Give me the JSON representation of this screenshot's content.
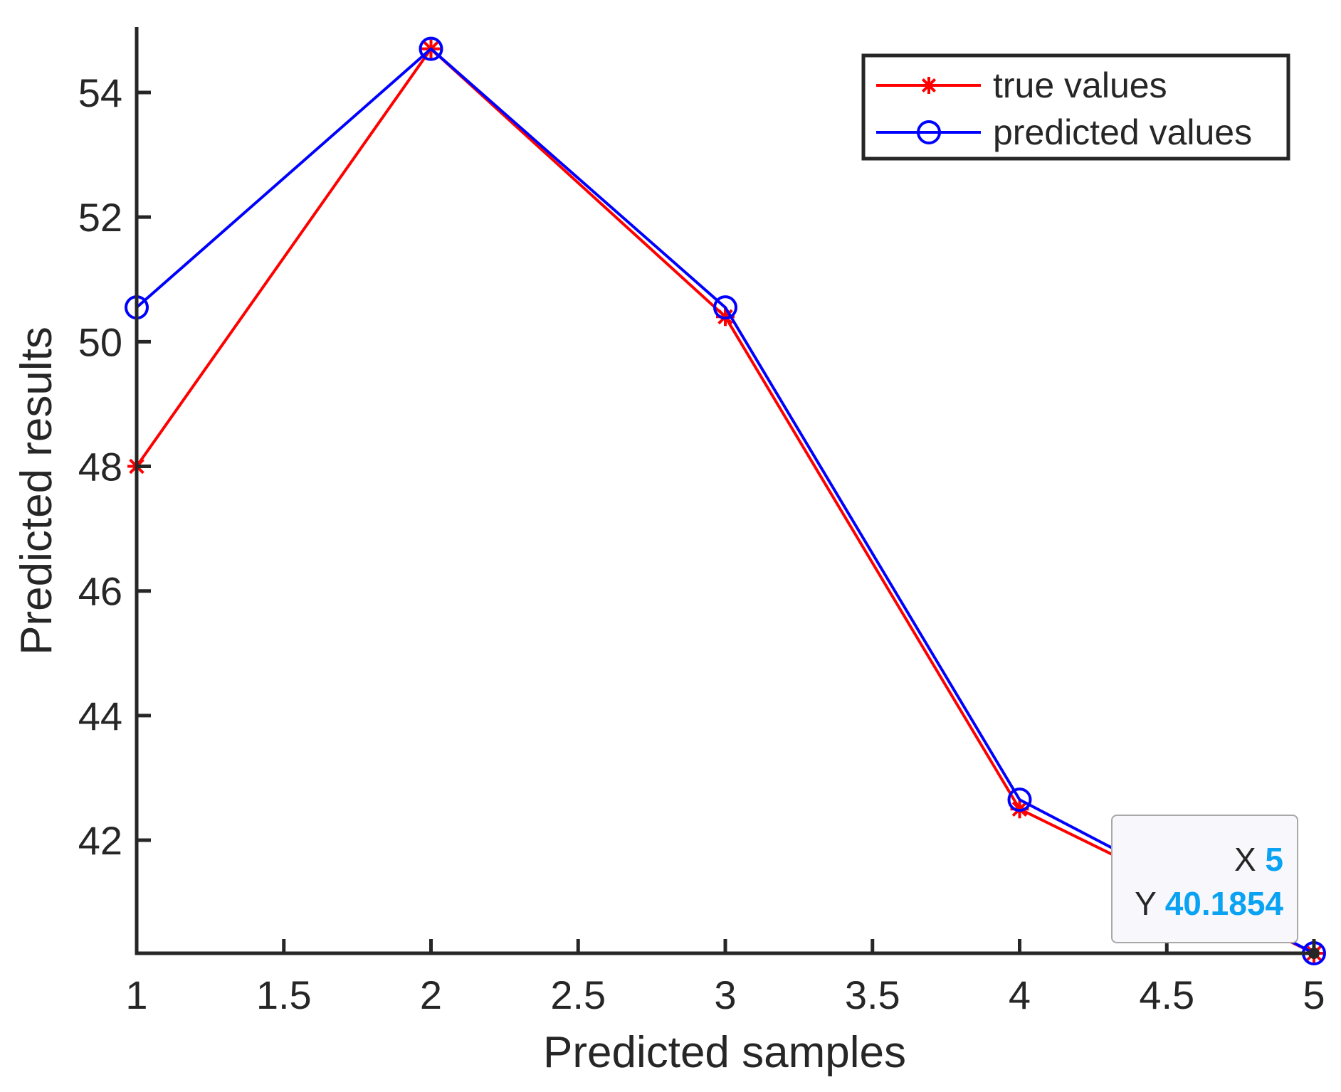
{
  "chart_data": {
    "type": "line",
    "title": "",
    "xlabel": "Predicted samples",
    "ylabel": "Predicted results",
    "xlim": [
      1,
      5
    ],
    "ylim": [
      40.1854,
      55.05
    ],
    "x_ticks": [
      1,
      1.5,
      2,
      2.5,
      3,
      3.5,
      4,
      4.5,
      5
    ],
    "x_tick_labels": [
      "1",
      "1.5",
      "2",
      "2.5",
      "3",
      "3.5",
      "4",
      "4.5",
      "5"
    ],
    "y_ticks": [
      42,
      44,
      46,
      48,
      50,
      52,
      54
    ],
    "y_tick_labels": [
      "42",
      "44",
      "46",
      "48",
      "50",
      "52",
      "54"
    ],
    "grid": false,
    "legend_position": "top-right",
    "series": [
      {
        "name": "true values",
        "color": "#ff0000",
        "marker": "asterisk",
        "x": [
          1,
          2,
          3,
          4,
          5
        ],
        "values": [
          48.0,
          54.7,
          50.4,
          42.5,
          40.1854
        ]
      },
      {
        "name": "predicted values",
        "color": "#0000ff",
        "marker": "circle",
        "x": [
          1,
          2,
          3,
          4,
          5
        ],
        "values": [
          50.55,
          54.7,
          50.55,
          42.65,
          40.1854
        ]
      }
    ],
    "datatip": {
      "x_key": "X",
      "x_value": "5",
      "y_key": "Y",
      "y_value": "40.1854"
    }
  }
}
